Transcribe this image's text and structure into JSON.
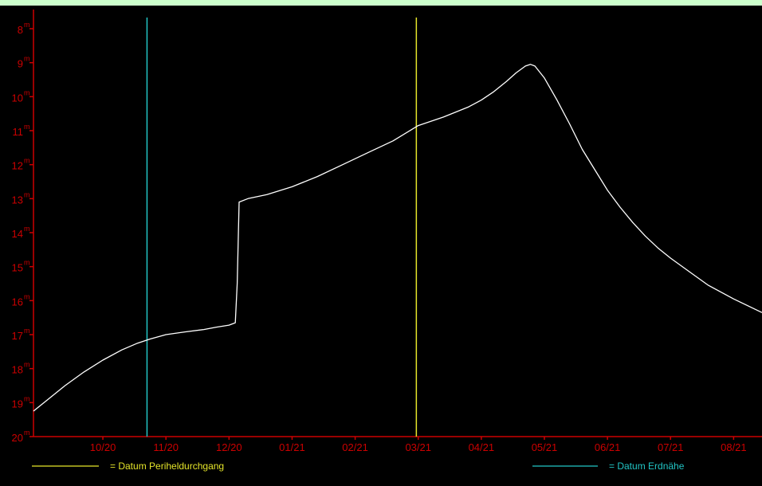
{
  "chart_data": {
    "type": "line",
    "title": "",
    "xlabel": "",
    "ylabel": "",
    "y_reversed": true,
    "ylim": [
      20,
      8
    ],
    "ytick_values": [
      8,
      9,
      10,
      11,
      12,
      13,
      14,
      15,
      16,
      17,
      18,
      19,
      20
    ],
    "ytick_suffix": "m",
    "xticks": [
      "10/20",
      "11/20",
      "12/20",
      "01/21",
      "02/21",
      "03/21",
      "04/21",
      "05/21",
      "06/21",
      "07/21",
      "08/21"
    ],
    "x_unit": "month index (0 = 10/20)",
    "xlim": [
      -1.1,
      10.45
    ],
    "series": [
      {
        "name": "",
        "color": "#ffffff",
        "points": [
          [
            -1.1,
            19.25
          ],
          [
            -0.9,
            18.95
          ],
          [
            -0.6,
            18.5
          ],
          [
            -0.3,
            18.1
          ],
          [
            0.0,
            17.75
          ],
          [
            0.3,
            17.45
          ],
          [
            0.55,
            17.25
          ],
          [
            0.75,
            17.13
          ],
          [
            1.0,
            17.0
          ],
          [
            1.3,
            16.92
          ],
          [
            1.6,
            16.85
          ],
          [
            1.8,
            16.78
          ],
          [
            2.0,
            16.72
          ],
          [
            2.1,
            16.65
          ],
          [
            2.13,
            15.5
          ],
          [
            2.16,
            13.1
          ],
          [
            2.3,
            13.0
          ],
          [
            2.6,
            12.88
          ],
          [
            3.0,
            12.65
          ],
          [
            3.4,
            12.35
          ],
          [
            3.8,
            12.0
          ],
          [
            4.2,
            11.65
          ],
          [
            4.6,
            11.3
          ],
          [
            5.0,
            10.85
          ],
          [
            5.4,
            10.6
          ],
          [
            5.8,
            10.3
          ],
          [
            6.0,
            10.1
          ],
          [
            6.2,
            9.85
          ],
          [
            6.4,
            9.55
          ],
          [
            6.55,
            9.3
          ],
          [
            6.7,
            9.1
          ],
          [
            6.78,
            9.05
          ],
          [
            6.85,
            9.1
          ],
          [
            7.0,
            9.45
          ],
          [
            7.2,
            10.1
          ],
          [
            7.4,
            10.8
          ],
          [
            7.6,
            11.55
          ],
          [
            7.8,
            12.15
          ],
          [
            8.0,
            12.75
          ],
          [
            8.2,
            13.25
          ],
          [
            8.4,
            13.7
          ],
          [
            8.6,
            14.1
          ],
          [
            8.8,
            14.45
          ],
          [
            9.0,
            14.75
          ],
          [
            9.3,
            15.15
          ],
          [
            9.6,
            15.55
          ],
          [
            10.0,
            15.95
          ],
          [
            10.45,
            16.35
          ]
        ]
      }
    ],
    "vertical_markers": [
      {
        "label": "= Datum Erdnähe",
        "x": 0.7,
        "color": "#22c5c5"
      },
      {
        "label": "= Datum Periheldurchgang",
        "x": 4.97,
        "color": "#e5e52a"
      }
    ],
    "axis_color": "#cc0000",
    "grid": false,
    "legend_placement": "bottom"
  }
}
